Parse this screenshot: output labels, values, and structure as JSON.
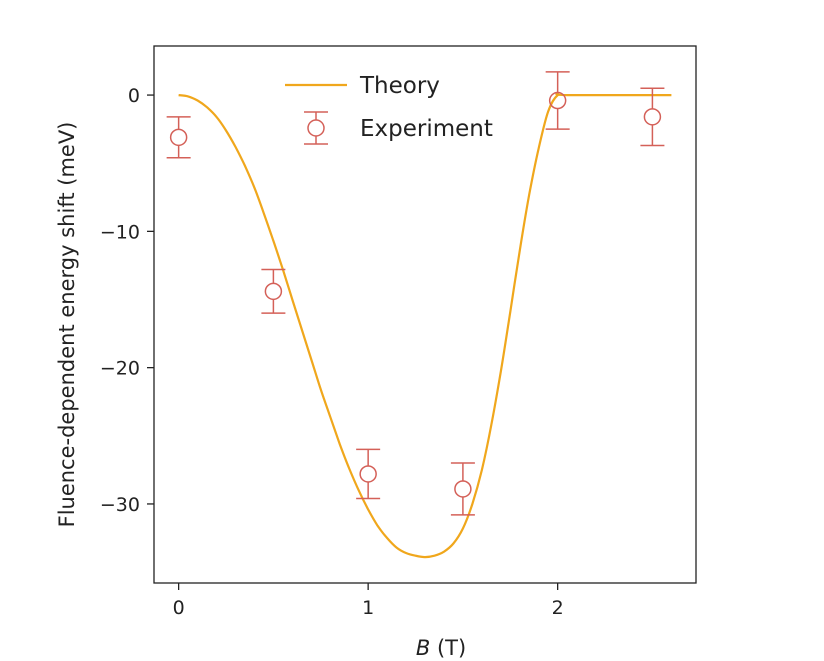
{
  "chart_data": {
    "type": "line",
    "xlabel_var": "B",
    "xlabel_unit": " (T)",
    "ylabel": "Fluence-dependent energy shift (meV)",
    "xlim": [
      -0.13,
      2.73
    ],
    "ylim": [
      -35.8,
      3.6
    ],
    "xticks": [
      0,
      1,
      2
    ],
    "yticks": [
      0,
      -10,
      -20,
      -30
    ],
    "xtick_labels": [
      "0",
      "1",
      "2"
    ],
    "ytick_labels": [
      "0",
      "−10",
      "−20",
      "−30"
    ],
    "grid": false,
    "legend_position": "top-center",
    "series": [
      {
        "name": "Theory",
        "kind": "line",
        "color": "#f0a71c",
        "x": [
          0,
          0.05,
          0.1,
          0.15,
          0.2,
          0.25,
          0.3,
          0.35,
          0.4,
          0.45,
          0.5,
          0.55,
          0.6,
          0.65,
          0.7,
          0.75,
          0.8,
          0.85,
          0.9,
          0.95,
          1.0,
          1.05,
          1.1,
          1.15,
          1.2,
          1.25,
          1.3,
          1.35,
          1.4,
          1.45,
          1.5,
          1.55,
          1.6,
          1.65,
          1.7,
          1.75,
          1.8,
          1.85,
          1.9,
          1.95,
          2.0,
          2.05,
          2.6
        ],
        "y": [
          0,
          -0.1,
          -0.4,
          -0.9,
          -1.6,
          -2.6,
          -3.8,
          -5.2,
          -6.8,
          -8.7,
          -10.7,
          -12.8,
          -15.0,
          -17.2,
          -19.4,
          -21.6,
          -23.6,
          -25.6,
          -27.4,
          -29.0,
          -30.4,
          -31.6,
          -32.5,
          -33.2,
          -33.6,
          -33.8,
          -33.9,
          -33.8,
          -33.5,
          -32.9,
          -31.8,
          -30.0,
          -27.5,
          -24.2,
          -20.3,
          -15.9,
          -11.4,
          -7.3,
          -3.9,
          -1.2,
          0,
          0,
          0
        ]
      },
      {
        "name": "Experiment",
        "kind": "errorbar",
        "color": "#d46058",
        "x": [
          0,
          0.5,
          1.0,
          1.5,
          2.0,
          2.5
        ],
        "y": [
          -3.1,
          -14.4,
          -27.8,
          -28.9,
          -0.4,
          -1.6
        ],
        "yerr": [
          1.5,
          1.6,
          1.8,
          1.9,
          2.1,
          2.1
        ]
      }
    ]
  }
}
